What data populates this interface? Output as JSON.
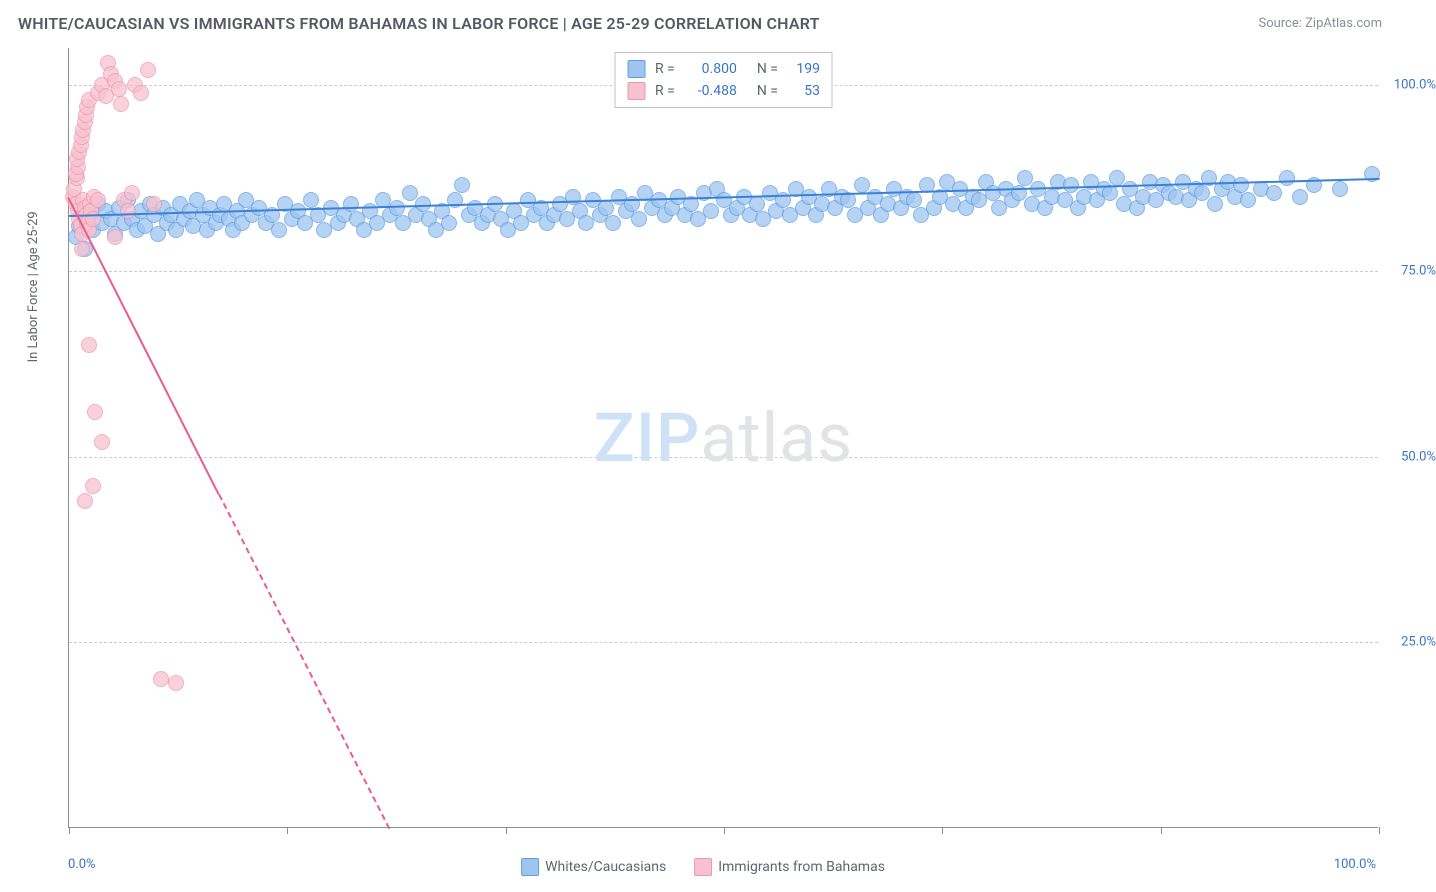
{
  "header": {
    "title": "WHITE/CAUCASIAN VS IMMIGRANTS FROM BAHAMAS IN LABOR FORCE | AGE 25-29 CORRELATION CHART",
    "source_label": "Source: ZipAtlas.com"
  },
  "watermark": {
    "zip": "ZIP",
    "atlas": "atlas"
  },
  "chart": {
    "type": "scatter",
    "x_axis": {
      "min": 0,
      "max": 100,
      "tick_positions": [
        0,
        16.67,
        33.33,
        50,
        66.67,
        83.33,
        100
      ],
      "label_min": "0.0%",
      "label_max": "100.0%"
    },
    "y_axis": {
      "title": "In Labor Force | Age 25-29",
      "min": 0,
      "max": 105,
      "grid_lines": [
        25,
        50,
        75,
        100
      ],
      "labels": {
        "25": "25.0%",
        "50": "50.0%",
        "75": "75.0%",
        "100": "100.0%"
      }
    },
    "background_color": "#ffffff",
    "grid_color": "#c9ccd1",
    "axis_color": "#8a8f96",
    "marker_radius": 8,
    "marker_opacity_fill": 0.35,
    "marker_opacity_stroke": 0.9,
    "series": [
      {
        "id": "whites",
        "label": "Whites/Caucasians",
        "color_fill": "#9ec5f0",
        "color_stroke": "#5e9fe4",
        "line_color": "#3b82d6",
        "stats": {
          "R": "0.800",
          "N": "199"
        },
        "trend": {
          "x1": 0,
          "y1": 82.5,
          "x2": 100,
          "y2": 87.5,
          "dash": false
        },
        "points": [
          [
            0.5,
            79.5
          ],
          [
            0.8,
            81.0
          ],
          [
            1.2,
            78.0
          ],
          [
            1.5,
            82.5
          ],
          [
            1.8,
            80.5
          ],
          [
            2.2,
            84.0
          ],
          [
            2.5,
            81.5
          ],
          [
            2.8,
            83.0
          ],
          [
            3.2,
            82.0
          ],
          [
            3.5,
            80.0
          ],
          [
            3.8,
            83.5
          ],
          [
            4.2,
            81.5
          ],
          [
            4.5,
            84.5
          ],
          [
            4.8,
            82.0
          ],
          [
            5.2,
            80.5
          ],
          [
            5.5,
            83.0
          ],
          [
            5.8,
            81.0
          ],
          [
            6.2,
            84.0
          ],
          [
            6.5,
            82.5
          ],
          [
            6.8,
            80.0
          ],
          [
            7.2,
            83.5
          ],
          [
            7.5,
            81.5
          ],
          [
            7.8,
            82.5
          ],
          [
            8.2,
            80.5
          ],
          [
            8.5,
            84.0
          ],
          [
            8.8,
            82.0
          ],
          [
            9.2,
            83.0
          ],
          [
            9.5,
            81.0
          ],
          [
            9.8,
            84.5
          ],
          [
            10.2,
            82.5
          ],
          [
            10.5,
            80.5
          ],
          [
            10.8,
            83.5
          ],
          [
            11.2,
            81.5
          ],
          [
            11.5,
            82.5
          ],
          [
            11.8,
            84.0
          ],
          [
            12.2,
            82.0
          ],
          [
            12.5,
            80.5
          ],
          [
            12.8,
            83.0
          ],
          [
            13.2,
            81.5
          ],
          [
            13.5,
            84.5
          ],
          [
            14.0,
            82.5
          ],
          [
            14.5,
            83.5
          ],
          [
            15.0,
            81.5
          ],
          [
            15.5,
            82.5
          ],
          [
            16.0,
            80.5
          ],
          [
            16.5,
            84.0
          ],
          [
            17.0,
            82.0
          ],
          [
            17.5,
            83.0
          ],
          [
            18.0,
            81.5
          ],
          [
            18.5,
            84.5
          ],
          [
            19.0,
            82.5
          ],
          [
            19.5,
            80.5
          ],
          [
            20.0,
            83.5
          ],
          [
            20.5,
            81.5
          ],
          [
            21.0,
            82.5
          ],
          [
            21.5,
            84.0
          ],
          [
            22.0,
            82.0
          ],
          [
            22.5,
            80.5
          ],
          [
            23.0,
            83.0
          ],
          [
            23.5,
            81.5
          ],
          [
            24.0,
            84.5
          ],
          [
            24.5,
            82.5
          ],
          [
            25.0,
            83.5
          ],
          [
            25.5,
            81.5
          ],
          [
            26.0,
            85.5
          ],
          [
            26.5,
            82.5
          ],
          [
            27.0,
            84.0
          ],
          [
            27.5,
            82.0
          ],
          [
            28.0,
            80.5
          ],
          [
            28.5,
            83.0
          ],
          [
            29.0,
            81.5
          ],
          [
            29.5,
            84.5
          ],
          [
            30.0,
            86.5
          ],
          [
            30.5,
            82.5
          ],
          [
            31.0,
            83.5
          ],
          [
            31.5,
            81.5
          ],
          [
            32.0,
            82.5
          ],
          [
            32.5,
            84.0
          ],
          [
            33.0,
            82.0
          ],
          [
            33.5,
            80.5
          ],
          [
            34.0,
            83.0
          ],
          [
            34.5,
            81.5
          ],
          [
            35.0,
            84.5
          ],
          [
            35.5,
            82.5
          ],
          [
            36.0,
            83.5
          ],
          [
            36.5,
            81.5
          ],
          [
            37.0,
            82.5
          ],
          [
            37.5,
            84.0
          ],
          [
            38.0,
            82.0
          ],
          [
            38.5,
            85.0
          ],
          [
            39.0,
            83.0
          ],
          [
            39.5,
            81.5
          ],
          [
            40.0,
            84.5
          ],
          [
            40.5,
            82.5
          ],
          [
            41.0,
            83.5
          ],
          [
            41.5,
            81.5
          ],
          [
            42.0,
            85.0
          ],
          [
            42.5,
            83.0
          ],
          [
            43.0,
            84.0
          ],
          [
            43.5,
            82.0
          ],
          [
            44.0,
            85.5
          ],
          [
            44.5,
            83.5
          ],
          [
            45.0,
            84.5
          ],
          [
            45.5,
            82.5
          ],
          [
            46.0,
            83.5
          ],
          [
            46.5,
            85.0
          ],
          [
            47.0,
            82.5
          ],
          [
            47.5,
            84.0
          ],
          [
            48.0,
            82.0
          ],
          [
            48.5,
            85.5
          ],
          [
            49.0,
            83.0
          ],
          [
            49.5,
            86.0
          ],
          [
            50.0,
            84.5
          ],
          [
            50.5,
            82.5
          ],
          [
            51.0,
            83.5
          ],
          [
            51.5,
            85.0
          ],
          [
            52.0,
            82.5
          ],
          [
            52.5,
            84.0
          ],
          [
            53.0,
            82.0
          ],
          [
            53.5,
            85.5
          ],
          [
            54.0,
            83.0
          ],
          [
            54.5,
            84.5
          ],
          [
            55.0,
            82.5
          ],
          [
            55.5,
            86.0
          ],
          [
            56.0,
            83.5
          ],
          [
            56.5,
            85.0
          ],
          [
            57.0,
            82.5
          ],
          [
            57.5,
            84.0
          ],
          [
            58.0,
            86.0
          ],
          [
            58.5,
            83.5
          ],
          [
            59.0,
            85.0
          ],
          [
            59.5,
            84.5
          ],
          [
            60.0,
            82.5
          ],
          [
            60.5,
            86.5
          ],
          [
            61.0,
            83.5
          ],
          [
            61.5,
            85.0
          ],
          [
            62.0,
            82.5
          ],
          [
            62.5,
            84.0
          ],
          [
            63.0,
            86.0
          ],
          [
            63.5,
            83.5
          ],
          [
            64.0,
            85.0
          ],
          [
            64.5,
            84.5
          ],
          [
            65.0,
            82.5
          ],
          [
            65.5,
            86.5
          ],
          [
            66.0,
            83.5
          ],
          [
            66.5,
            85.0
          ],
          [
            67.0,
            87.0
          ],
          [
            67.5,
            84.0
          ],
          [
            68.0,
            86.0
          ],
          [
            68.5,
            83.5
          ],
          [
            69.0,
            85.0
          ],
          [
            69.5,
            84.5
          ],
          [
            70.0,
            87.0
          ],
          [
            70.5,
            85.5
          ],
          [
            71.0,
            83.5
          ],
          [
            71.5,
            86.0
          ],
          [
            72.0,
            84.5
          ],
          [
            72.5,
            85.5
          ],
          [
            73.0,
            87.5
          ],
          [
            73.5,
            84.0
          ],
          [
            74.0,
            86.0
          ],
          [
            74.5,
            83.5
          ],
          [
            75.0,
            85.0
          ],
          [
            75.5,
            87.0
          ],
          [
            76.0,
            84.5
          ],
          [
            76.5,
            86.5
          ],
          [
            77.0,
            83.5
          ],
          [
            77.5,
            85.0
          ],
          [
            78.0,
            87.0
          ],
          [
            78.5,
            84.5
          ],
          [
            79.0,
            86.0
          ],
          [
            79.5,
            85.5
          ],
          [
            80.0,
            87.5
          ],
          [
            80.5,
            84.0
          ],
          [
            81.0,
            86.0
          ],
          [
            81.5,
            83.5
          ],
          [
            82.0,
            85.0
          ],
          [
            82.5,
            87.0
          ],
          [
            83.0,
            84.5
          ],
          [
            83.5,
            86.5
          ],
          [
            84.0,
            85.5
          ],
          [
            84.5,
            85.0
          ],
          [
            85.0,
            87.0
          ],
          [
            85.5,
            84.5
          ],
          [
            86.0,
            86.0
          ],
          [
            86.5,
            85.5
          ],
          [
            87.0,
            87.5
          ],
          [
            87.5,
            84.0
          ],
          [
            88.0,
            86.0
          ],
          [
            88.5,
            87.0
          ],
          [
            89.0,
            85.0
          ],
          [
            89.5,
            86.5
          ],
          [
            90.0,
            84.5
          ],
          [
            91.0,
            86.0
          ],
          [
            92.0,
            85.5
          ],
          [
            93.0,
            87.5
          ],
          [
            94.0,
            85.0
          ],
          [
            95.0,
            86.5
          ],
          [
            97.0,
            86.0
          ],
          [
            99.5,
            88.0
          ]
        ]
      },
      {
        "id": "bahamas",
        "label": "Immigrants from Bahamas",
        "color_fill": "#f7c2d0",
        "color_stroke": "#ef96b0",
        "line_color": "#e95d87",
        "stats": {
          "R": "-0.488",
          "N": "53"
        },
        "trend": {
          "x1": 0,
          "y1": 85.0,
          "x2": 11.5,
          "y2": 45.0,
          "dash": false
        },
        "trend_ext": {
          "x1": 11.5,
          "y1": 45.0,
          "x2": 24.5,
          "y2": 0.0,
          "dash": true
        },
        "points": [
          [
            0.3,
            85.0
          ],
          [
            0.5,
            84.0
          ],
          [
            0.4,
            86.0
          ],
          [
            0.7,
            83.0
          ],
          [
            0.6,
            87.5
          ],
          [
            0.8,
            82.0
          ],
          [
            0.5,
            88.0
          ],
          [
            0.9,
            81.0
          ],
          [
            0.7,
            89.0
          ],
          [
            1.0,
            80.0
          ],
          [
            0.6,
            90.0
          ],
          [
            1.1,
            84.5
          ],
          [
            0.8,
            91.0
          ],
          [
            1.2,
            83.5
          ],
          [
            0.9,
            92.0
          ],
          [
            1.3,
            82.5
          ],
          [
            1.0,
            93.0
          ],
          [
            1.4,
            81.5
          ],
          [
            1.1,
            94.0
          ],
          [
            1.5,
            80.5
          ],
          [
            1.2,
            95.0
          ],
          [
            1.6,
            84.0
          ],
          [
            1.3,
            96.0
          ],
          [
            1.7,
            83.0
          ],
          [
            1.4,
            97.0
          ],
          [
            1.8,
            82.0
          ],
          [
            1.5,
            98.0
          ],
          [
            1.9,
            85.0
          ],
          [
            2.2,
            99.0
          ],
          [
            2.5,
            100.0
          ],
          [
            2.8,
            98.5
          ],
          [
            3.0,
            103.0
          ],
          [
            3.2,
            101.5
          ],
          [
            3.5,
            100.5
          ],
          [
            3.8,
            99.5
          ],
          [
            4.0,
            97.5
          ],
          [
            4.2,
            84.5
          ],
          [
            4.5,
            83.0
          ],
          [
            4.8,
            85.5
          ],
          [
            5.0,
            100.0
          ],
          [
            5.5,
            99.0
          ],
          [
            6.0,
            102.0
          ],
          [
            6.5,
            84.0
          ],
          [
            1.0,
            78.0
          ],
          [
            1.5,
            65.0
          ],
          [
            2.0,
            56.0
          ],
          [
            2.5,
            52.0
          ],
          [
            1.8,
            46.0
          ],
          [
            1.2,
            44.0
          ],
          [
            3.5,
            79.5
          ],
          [
            7.0,
            20.0
          ],
          [
            8.2,
            19.5
          ],
          [
            2.2,
            84.5
          ]
        ]
      }
    ]
  }
}
